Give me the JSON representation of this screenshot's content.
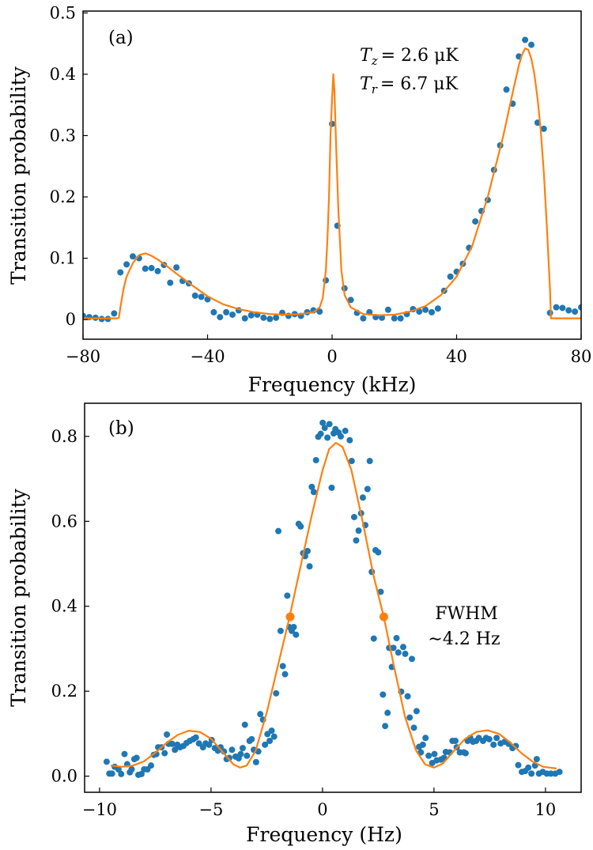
{
  "colors": {
    "points": "#1f77b4",
    "fit": "#ff7f0e",
    "axes": "#000000"
  },
  "chart_data": [
    {
      "type": "scatter",
      "panel_label": "(a)",
      "xlabel": "Frequency (kHz)",
      "ylabel": "Transition probability",
      "xlim": [
        -80,
        80
      ],
      "ylim": [
        -0.032,
        0.503
      ],
      "xticks": [
        -80,
        -40,
        0,
        40,
        80
      ],
      "xtick_labels": [
        "−80",
        "−40",
        "0",
        "40",
        "80"
      ],
      "yticks": [
        0,
        0.1,
        0.2,
        0.3,
        0.4,
        0.5
      ],
      "ytick_labels": [
        "0",
        "0.1",
        "0.2",
        "0.3",
        "0.4",
        "0.5"
      ],
      "grid": false,
      "annotations": [
        {
          "symbol": "T",
          "sub": "z",
          "rest": "= 2.6 μK"
        },
        {
          "symbol": "T",
          "sub": "r",
          "rest": "= 6.7 μK"
        }
      ],
      "points": {
        "x": [
          -80,
          -78,
          -76,
          -74,
          -72,
          -70,
          -68,
          -66,
          -64,
          -62,
          -60,
          -58,
          -56,
          -54,
          -52,
          -50,
          -48,
          -46,
          -44,
          -42,
          -40,
          -38,
          -36,
          -34,
          -32,
          -30,
          -28,
          -26,
          -24,
          -22,
          -20,
          -18,
          -16,
          -14,
          -12,
          -10,
          -8,
          -6,
          -4,
          -2,
          0,
          1.7,
          4,
          6,
          8,
          10,
          12,
          14,
          16,
          18,
          20,
          22,
          24,
          26,
          28,
          30,
          32,
          34,
          36,
          38,
          40,
          42,
          44,
          46,
          48,
          50,
          52,
          54,
          56,
          58,
          60,
          62,
          64,
          66,
          68,
          70,
          72,
          74,
          76,
          78,
          80
        ],
        "y": [
          0.006,
          0.004,
          0.003,
          0.001,
          0.001,
          0.01,
          0.077,
          0.09,
          0.103,
          0.1,
          0.083,
          0.084,
          0.079,
          0.089,
          0.06,
          0.085,
          0.063,
          0.059,
          0.039,
          0.037,
          0.033,
          0.012,
          0.004,
          0.012,
          0.008,
          0.015,
          0.002,
          0.007,
          0.008,
          0.003,
          0.001,
          0.003,
          0.011,
          0.006,
          0.009,
          0.006,
          0.012,
          0.015,
          0.013,
          0.064,
          0.319,
          0.153,
          0.051,
          0.032,
          0.011,
          0.002,
          0.012,
          0.004,
          0.003,
          0.016,
          0.002,
          0.002,
          0.009,
          0.017,
          0.013,
          0.016,
          0.012,
          0.018,
          0.047,
          0.07,
          0.078,
          0.091,
          0.117,
          0.16,
          0.177,
          0.195,
          0.244,
          0.284,
          0.375,
          0.352,
          0.429,
          0.456,
          0.448,
          0.321,
          0.311,
          0.011,
          0.02,
          0.019,
          0.015,
          0.013,
          0.02
        ]
      },
      "fit": {
        "x": [
          -80,
          -70,
          -69,
          -68.5,
          -68,
          -67,
          -66,
          -64,
          -62,
          -60,
          -58,
          -56,
          -53,
          -50,
          -45,
          -40,
          -35,
          -30,
          -25,
          -20,
          -15,
          -10,
          -6,
          -4,
          -3,
          -2,
          -1.5,
          -1,
          -0.5,
          0,
          0.4,
          0.8,
          1.2,
          2,
          3,
          4,
          6,
          10,
          15,
          20,
          25,
          30,
          35,
          40,
          45,
          50,
          55,
          58,
          60,
          61,
          62,
          63,
          64,
          65,
          66,
          67,
          68,
          69,
          70,
          70.3,
          71,
          80
        ],
        "y": [
          0.002,
          0.002,
          0.002,
          0.003,
          0.02,
          0.05,
          0.07,
          0.092,
          0.105,
          0.108,
          0.104,
          0.098,
          0.087,
          0.075,
          0.056,
          0.038,
          0.025,
          0.017,
          0.012,
          0.009,
          0.008,
          0.009,
          0.012,
          0.02,
          0.035,
          0.08,
          0.13,
          0.2,
          0.3,
          0.36,
          0.4,
          0.37,
          0.3,
          0.18,
          0.08,
          0.04,
          0.02,
          0.009,
          0.007,
          0.008,
          0.013,
          0.022,
          0.04,
          0.07,
          0.12,
          0.2,
          0.3,
          0.37,
          0.415,
          0.432,
          0.442,
          0.44,
          0.425,
          0.4,
          0.36,
          0.31,
          0.24,
          0.15,
          0.05,
          0.002,
          0.002,
          0.002
        ]
      }
    },
    {
      "type": "scatter",
      "panel_label": "(b)",
      "xlabel": "Frequency (Hz)",
      "ylabel": "Transition probability",
      "xlim": [
        -10.67,
        11.6
      ],
      "ylim": [
        -0.038,
        0.878
      ],
      "xticks": [
        -10,
        -5,
        0,
        5,
        10
      ],
      "xtick_labels": [
        "−10",
        "−5",
        "0",
        "5",
        "10"
      ],
      "yticks": [
        0,
        0.2,
        0.4,
        0.6,
        0.8
      ],
      "ytick_labels": [
        "0.0",
        "0.2",
        "0.4",
        "0.6",
        "0.8"
      ],
      "grid": false,
      "annotations": [
        {
          "text": "FWHM"
        },
        {
          "text": "∼4.2 Hz"
        }
      ],
      "fwhm_markers": {
        "x": [
          -1.45,
          2.75
        ],
        "y": [
          0.375,
          0.375
        ]
      },
      "points": {
        "x": [
          -9.68,
          -9.56,
          -9.44,
          -9.32,
          -9.15,
          -9.03,
          -8.88,
          -8.76,
          -8.64,
          -8.56,
          -8.44,
          -8.34,
          -8.26,
          -8.12,
          -8.0,
          -7.85,
          -7.69,
          -7.57,
          -7.45,
          -7.37,
          -7.22,
          -7.08,
          -6.98,
          -6.9,
          -6.74,
          -6.62,
          -6.51,
          -6.39,
          -6.24,
          -6.1,
          -5.95,
          -5.8,
          -5.68,
          -5.54,
          -5.36,
          -5.24,
          -5.09,
          -4.97,
          -4.83,
          -4.69,
          -4.57,
          -4.42,
          -4.3,
          -4.18,
          -4.06,
          -3.9,
          -3.76,
          -3.67,
          -3.58,
          -3.48,
          -3.39,
          -3.27,
          -3.18,
          -3.08,
          -2.98,
          -2.88,
          -2.79,
          -2.67,
          -2.58,
          -2.47,
          -2.37,
          -2.28,
          -2.17,
          -2.08,
          -1.98,
          -1.88,
          -1.78,
          -1.68,
          -1.58,
          -1.49,
          -1.38,
          -1.29,
          -1.19,
          -1.07,
          -0.98,
          -0.87,
          -0.78,
          -0.67,
          -0.58,
          -0.48,
          -0.39,
          -0.29,
          -0.19,
          -0.08,
          0.01,
          0.1,
          0.22,
          0.31,
          0.41,
          0.5,
          0.58,
          0.72,
          0.82,
          1.02,
          1.22,
          1.31,
          2.12,
          2.02,
          1.81,
          1.73,
          1.42,
          1.62,
          1.51,
          1.92,
          2.38,
          2.5,
          2.21,
          2.61,
          2.3,
          2.99,
          3.18,
          3.32,
          3.4,
          3.62,
          3.71,
          4.01,
          3.11,
          2.71,
          2.92,
          2.81,
          3.53,
          3.82,
          4.22,
          3.91,
          4.1,
          4.62,
          4.33,
          4.5,
          4.41,
          4.76,
          5.02,
          4.92,
          5.12,
          5.31,
          5.45,
          5.53,
          5.71,
          5.83,
          5.96,
          6.02,
          6.16,
          6.34,
          6.42,
          6.51,
          6.63,
          6.75,
          6.89,
          7.01,
          7.2,
          7.34,
          7.48,
          7.67,
          7.81,
          7.99,
          8.17,
          8.35,
          8.52,
          8.67,
          8.78,
          8.94,
          9.09,
          9.23,
          9.37,
          9.53,
          9.61,
          9.71,
          9.88,
          10.06,
          10.24,
          10.44,
          10.63
        ],
        "y": [
          0.034,
          0.006,
          0.006,
          0.022,
          0.016,
          0.005,
          0.052,
          0.028,
          0.009,
          0.016,
          0.04,
          0.043,
          0.003,
          0.005,
          0.016,
          0.016,
          0.025,
          0.05,
          0.052,
          0.068,
          0.068,
          0.054,
          0.098,
          0.076,
          0.076,
          0.062,
          0.074,
          0.068,
          0.071,
          0.078,
          0.083,
          0.087,
          0.091,
          0.077,
          0.068,
          0.077,
          0.074,
          0.085,
          0.066,
          0.06,
          0.068,
          0.058,
          0.04,
          0.043,
          0.062,
          0.046,
          0.042,
          0.052,
          0.066,
          0.121,
          0.048,
          0.083,
          0.087,
          0.062,
          0.033,
          0.058,
          0.146,
          0.133,
          0.074,
          0.099,
          0.083,
          0.107,
          0.093,
          0.195,
          0.577,
          0.342,
          0.259,
          0.24,
          0.425,
          0.351,
          0.342,
          0.351,
          0.333,
          0.594,
          0.588,
          0.525,
          0.518,
          0.53,
          0.494,
          0.681,
          0.669,
          0.744,
          0.799,
          0.806,
          0.832,
          0.82,
          0.797,
          0.829,
          0.679,
          0.807,
          0.817,
          0.809,
          0.8,
          0.813,
          0.791,
          0.742,
          0.742,
          0.676,
          0.656,
          0.619,
          0.61,
          0.578,
          0.555,
          0.591,
          0.532,
          0.527,
          0.481,
          0.434,
          0.324,
          0.302,
          0.302,
          0.325,
          0.291,
          0.304,
          0.288,
          0.276,
          0.257,
          0.192,
          0.149,
          0.118,
          0.199,
          0.188,
          0.153,
          0.138,
          0.114,
          0.09,
          0.069,
          0.074,
          0.056,
          0.048,
          0.052,
          0.031,
          0.037,
          0.039,
          0.043,
          0.057,
          0.056,
          0.083,
          0.083,
          0.068,
          0.056,
          0.056,
          0.054,
          0.083,
          0.09,
          0.081,
          0.083,
          0.09,
          0.083,
          0.09,
          0.087,
          0.074,
          0.09,
          0.077,
          0.081,
          0.076,
          0.066,
          0.071,
          0.026,
          0.01,
          0.012,
          0.02,
          0.006,
          0.025,
          0.04,
          0.006,
          0.01,
          0.006,
          0.006,
          0.006,
          0.01
        ]
      },
      "fit": {
        "x": [
          -9.5,
          -9,
          -8.5,
          -8,
          -7.5,
          -7,
          -6.5,
          -6,
          -5.5,
          -5,
          -4.5,
          -4,
          -3.7,
          -3.4,
          -3,
          -2.5,
          -2,
          -1.5,
          -1,
          -0.5,
          0,
          0.3,
          0.6,
          0.9,
          1.3,
          1.8,
          2.3,
          2.75,
          3.2,
          3.7,
          4.2,
          4.6,
          5,
          5.4,
          5.9,
          6.4,
          6.9,
          7.4,
          7.9,
          8.4,
          8.9,
          9.4,
          9.9,
          10.5
        ],
        "y": [
          0.025,
          0.022,
          0.025,
          0.035,
          0.055,
          0.078,
          0.097,
          0.107,
          0.104,
          0.088,
          0.058,
          0.028,
          0.02,
          0.025,
          0.06,
          0.15,
          0.26,
          0.37,
          0.49,
          0.61,
          0.72,
          0.77,
          0.785,
          0.775,
          0.72,
          0.6,
          0.47,
          0.375,
          0.26,
          0.14,
          0.06,
          0.028,
          0.02,
          0.03,
          0.06,
          0.088,
          0.104,
          0.108,
          0.1,
          0.08,
          0.055,
          0.035,
          0.022,
          0.018
        ]
      }
    }
  ]
}
